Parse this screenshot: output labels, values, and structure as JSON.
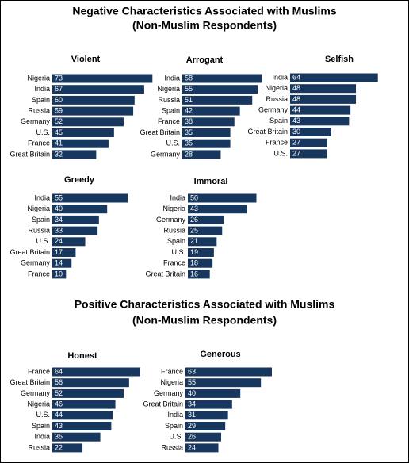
{
  "headings": [
    {
      "title": "Negative Characteristics Associated with Muslims",
      "subtitle": "(Non-Muslim Respondents)"
    },
    {
      "title": "Positive Characteristics Associated with Muslims",
      "subtitle": "(Non-Muslim Respondents)"
    }
  ],
  "chart_data": [
    {
      "type": "bar",
      "orientation": "horizontal",
      "title": "Violent",
      "color": "#17375e",
      "categories": [
        "Nigeria",
        "India",
        "Spain",
        "Russia",
        "Germany",
        "U.S.",
        "France",
        "Great Britain"
      ],
      "values": [
        73,
        67,
        60,
        59,
        52,
        45,
        41,
        32
      ]
    },
    {
      "type": "bar",
      "orientation": "horizontal",
      "title": "Arrogant",
      "color": "#17375e",
      "categories": [
        "India",
        "Nigeria",
        "Russia",
        "Spain",
        "France",
        "Great Britain",
        "U.S.",
        "Germany"
      ],
      "values": [
        58,
        55,
        51,
        42,
        38,
        35,
        35,
        28
      ]
    },
    {
      "type": "bar",
      "orientation": "horizontal",
      "title": "Selfish",
      "color": "#17375e",
      "categories": [
        "India",
        "Nigeria",
        "Russia",
        "Germany",
        "Spain",
        "Great Britain",
        "France",
        "U.S."
      ],
      "values": [
        64,
        48,
        48,
        44,
        43,
        30,
        27,
        27
      ]
    },
    {
      "type": "bar",
      "orientation": "horizontal",
      "title": "Greedy",
      "color": "#17375e",
      "categories": [
        "India",
        "Nigeria",
        "Spain",
        "Russia",
        "U.S.",
        "Great Britain",
        "Germany",
        "France"
      ],
      "values": [
        55,
        40,
        34,
        33,
        24,
        17,
        14,
        10
      ]
    },
    {
      "type": "bar",
      "orientation": "horizontal",
      "title": "Immoral",
      "color": "#17375e",
      "categories": [
        "India",
        "Nigeria",
        "Germany",
        "Russia",
        "Spain",
        "U.S.",
        "France",
        "Great Britain"
      ],
      "values": [
        50,
        43,
        26,
        25,
        21,
        19,
        18,
        16
      ]
    },
    {
      "type": "bar",
      "orientation": "horizontal",
      "title": "Honest",
      "color": "#17375e",
      "categories": [
        "France",
        "Great Britain",
        "Germany",
        "Nigeria",
        "U.S.",
        "Spain",
        "India",
        "Russia"
      ],
      "values": [
        64,
        56,
        52,
        46,
        44,
        43,
        35,
        22
      ]
    },
    {
      "type": "bar",
      "orientation": "horizontal",
      "title": "Generous",
      "color": "#17375e",
      "categories": [
        "France",
        "Nigeria",
        "Germany",
        "Great Britain",
        "India",
        "Spain",
        "U.S.",
        "Russia"
      ],
      "values": [
        63,
        55,
        40,
        34,
        31,
        29,
        26,
        24
      ]
    }
  ]
}
